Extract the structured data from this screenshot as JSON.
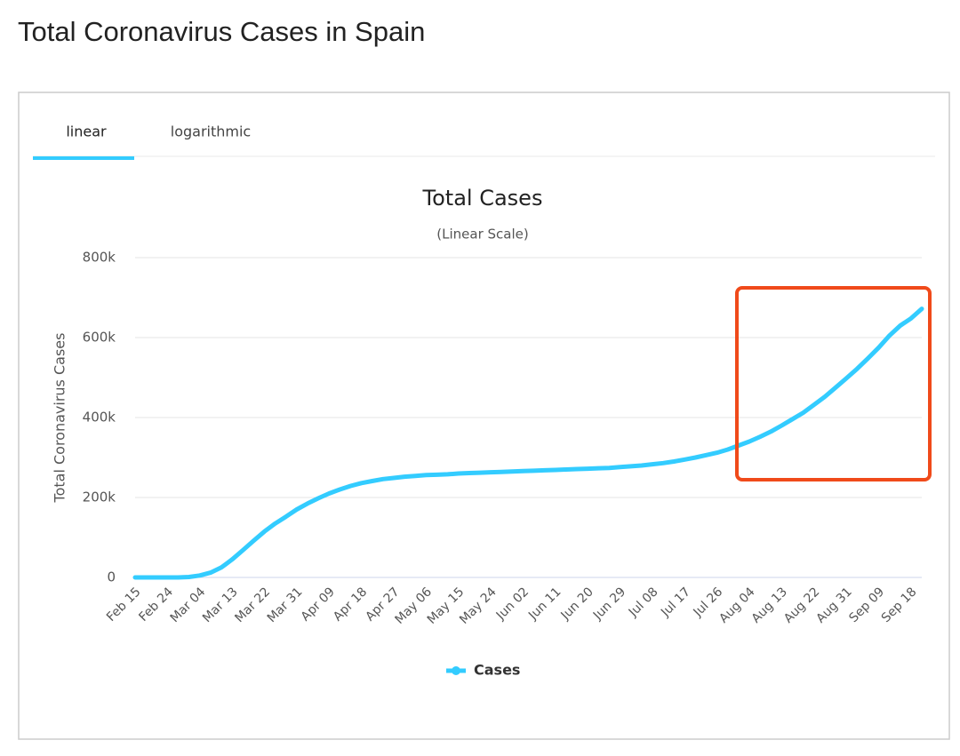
{
  "page_title": "Total Coronavirus Cases in Spain",
  "tabs": [
    "linear",
    "logarithmic"
  ],
  "chart_data": {
    "type": "line",
    "title": "Total Cases",
    "subtitle": "(Linear Scale)",
    "y_label": "Total Coronavirus Cases",
    "categories": [
      "Feb 15",
      null,
      null,
      "Feb 24",
      null,
      null,
      "Mar 04",
      null,
      null,
      "Mar 13",
      null,
      null,
      "Mar 22",
      null,
      null,
      "Mar 31",
      null,
      null,
      "Apr 09",
      null,
      null,
      "Apr 18",
      null,
      null,
      "Apr 27",
      null,
      null,
      "May 06",
      null,
      null,
      "May 15",
      null,
      null,
      "May 24",
      null,
      null,
      "Jun 02",
      null,
      null,
      "Jun 11",
      null,
      null,
      "Jun 20",
      null,
      null,
      "Jun 29",
      null,
      null,
      "Jul 08",
      null,
      null,
      "Jul 17",
      null,
      null,
      "Jul 26",
      null,
      null,
      "Aug 04",
      null,
      null,
      "Aug 13",
      null,
      null,
      "Aug 22",
      null,
      null,
      "Aug 31",
      null,
      null,
      "Sep 09",
      null,
      null,
      "Sep 18",
      null
    ],
    "series": [
      {
        "name": "Cases",
        "color": "#33ccff",
        "values": [
          2,
          2,
          2,
          2,
          100,
          1000,
          5000,
          12000,
          25000,
          45000,
          68000,
          92000,
          115000,
          135000,
          152000,
          170000,
          185000,
          198000,
          210000,
          220000,
          229000,
          236000,
          241000,
          246000,
          249000,
          252000,
          254000,
          256000,
          257000,
          258000,
          260000,
          261000,
          262000,
          263000,
          264000,
          265000,
          266000,
          267000,
          268000,
          269000,
          270000,
          271000,
          272000,
          273000,
          274000,
          276000,
          278000,
          280000,
          283000,
          286000,
          290000,
          295000,
          300000,
          306000,
          312000,
          320000,
          330000,
          340000,
          352000,
          365000,
          380000,
          396000,
          412000,
          432000,
          452000,
          475000,
          498000,
          522000,
          548000,
          575000,
          605000,
          630000,
          648000,
          672000
        ]
      }
    ],
    "ylim": [
      0,
      800000
    ],
    "yticks": [
      0,
      {
        "value": 200000,
        "label": "200k"
      },
      {
        "value": 400000,
        "label": "400k"
      },
      {
        "value": 600000,
        "label": "600k"
      },
      {
        "value": 800000,
        "label": "800k"
      }
    ],
    "grid": true
  }
}
